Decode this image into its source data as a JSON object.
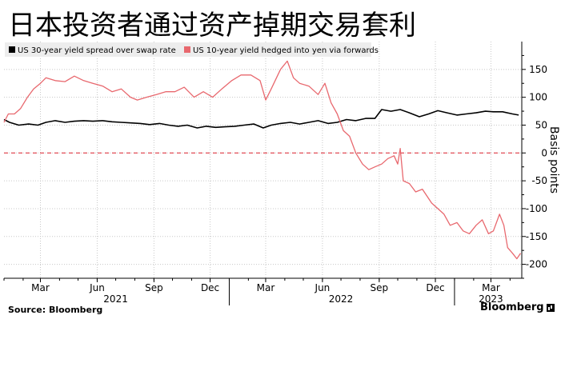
{
  "title": "日本投资者通过资产掉期交易套利",
  "source": "Source: Bloomberg",
  "brand": "Bloomberg",
  "chart_data": {
    "type": "line",
    "ylabel": "Basis points",
    "ylim": [
      -225,
      200
    ],
    "yticks": [
      150,
      100,
      50,
      0,
      -50,
      -100,
      -150,
      -200
    ],
    "x_range": [
      "2021-01-01",
      "2023-04-20"
    ],
    "x_months": [
      {
        "label": "Mar",
        "date": "2021-03-01"
      },
      {
        "label": "Jun",
        "date": "2021-06-01"
      },
      {
        "label": "Sep",
        "date": "2021-09-01"
      },
      {
        "label": "Dec",
        "date": "2021-12-01"
      },
      {
        "label": "Mar",
        "date": "2022-03-01"
      },
      {
        "label": "Jun",
        "date": "2022-06-01"
      },
      {
        "label": "Sep",
        "date": "2022-09-01"
      },
      {
        "label": "Dec",
        "date": "2022-12-01"
      },
      {
        "label": "Mar",
        "date": "2023-03-01"
      }
    ],
    "x_years": [
      {
        "label": "2021",
        "date": "2021-07-01"
      },
      {
        "label": "2022",
        "date": "2022-07-01"
      },
      {
        "label": "2023",
        "date": "2023-03-01"
      }
    ],
    "year_dividers": [
      "2022-01-01",
      "2023-01-01"
    ],
    "zero_line": 0,
    "grid": "horizontal-dotted",
    "legend_position": "top-left",
    "series": [
      {
        "name": "US 30-year yield spread over swap rate",
        "color": "#000000",
        "points": [
          [
            "2021-01-01",
            60
          ],
          [
            "2021-01-10",
            55
          ],
          [
            "2021-01-25",
            50
          ],
          [
            "2021-02-10",
            52
          ],
          [
            "2021-02-25",
            50
          ],
          [
            "2021-03-10",
            55
          ],
          [
            "2021-03-25",
            58
          ],
          [
            "2021-04-10",
            55
          ],
          [
            "2021-04-25",
            57
          ],
          [
            "2021-05-10",
            58
          ],
          [
            "2021-05-25",
            57
          ],
          [
            "2021-06-10",
            58
          ],
          [
            "2021-06-25",
            56
          ],
          [
            "2021-07-10",
            55
          ],
          [
            "2021-07-25",
            54
          ],
          [
            "2021-08-10",
            53
          ],
          [
            "2021-08-25",
            51
          ],
          [
            "2021-09-10",
            53
          ],
          [
            "2021-09-25",
            50
          ],
          [
            "2021-10-10",
            48
          ],
          [
            "2021-10-25",
            50
          ],
          [
            "2021-11-10",
            45
          ],
          [
            "2021-11-25",
            48
          ],
          [
            "2021-12-10",
            46
          ],
          [
            "2021-12-25",
            47
          ],
          [
            "2022-01-10",
            48
          ],
          [
            "2022-01-25",
            50
          ],
          [
            "2022-02-10",
            52
          ],
          [
            "2022-02-25",
            45
          ],
          [
            "2022-03-10",
            50
          ],
          [
            "2022-03-25",
            53
          ],
          [
            "2022-04-10",
            55
          ],
          [
            "2022-04-25",
            52
          ],
          [
            "2022-05-10",
            55
          ],
          [
            "2022-05-25",
            58
          ],
          [
            "2022-06-10",
            53
          ],
          [
            "2022-06-25",
            55
          ],
          [
            "2022-07-10",
            60
          ],
          [
            "2022-07-25",
            58
          ],
          [
            "2022-08-10",
            62
          ],
          [
            "2022-08-25",
            62
          ],
          [
            "2022-09-05",
            78
          ],
          [
            "2022-09-20",
            75
          ],
          [
            "2022-10-05",
            78
          ],
          [
            "2022-10-20",
            72
          ],
          [
            "2022-11-05",
            65
          ],
          [
            "2022-11-20",
            70
          ],
          [
            "2022-12-05",
            76
          ],
          [
            "2022-12-20",
            72
          ],
          [
            "2023-01-05",
            68
          ],
          [
            "2023-01-20",
            70
          ],
          [
            "2023-02-05",
            72
          ],
          [
            "2023-02-20",
            75
          ],
          [
            "2023-03-05",
            74
          ],
          [
            "2023-03-20",
            74
          ],
          [
            "2023-04-05",
            70
          ],
          [
            "2023-04-15",
            68
          ]
        ]
      },
      {
        "name": "US 10-year yield hedged into yen via forwards",
        "color": "#e8686e",
        "points": [
          [
            "2021-01-01",
            55
          ],
          [
            "2021-01-08",
            70
          ],
          [
            "2021-01-18",
            70
          ],
          [
            "2021-01-28",
            80
          ],
          [
            "2021-02-08",
            100
          ],
          [
            "2021-02-18",
            115
          ],
          [
            "2021-03-01",
            125
          ],
          [
            "2021-03-10",
            135
          ],
          [
            "2021-03-25",
            130
          ],
          [
            "2021-04-10",
            128
          ],
          [
            "2021-04-25",
            138
          ],
          [
            "2021-05-10",
            130
          ],
          [
            "2021-05-25",
            125
          ],
          [
            "2021-06-10",
            120
          ],
          [
            "2021-06-25",
            110
          ],
          [
            "2021-07-10",
            115
          ],
          [
            "2021-07-25",
            100
          ],
          [
            "2021-08-05",
            95
          ],
          [
            "2021-08-20",
            100
          ],
          [
            "2021-09-05",
            105
          ],
          [
            "2021-09-20",
            110
          ],
          [
            "2021-10-05",
            110
          ],
          [
            "2021-10-20",
            118
          ],
          [
            "2021-11-05",
            100
          ],
          [
            "2021-11-20",
            110
          ],
          [
            "2021-12-05",
            100
          ],
          [
            "2021-12-20",
            115
          ],
          [
            "2022-01-05",
            130
          ],
          [
            "2022-01-20",
            140
          ],
          [
            "2022-02-05",
            140
          ],
          [
            "2022-02-20",
            130
          ],
          [
            "2022-03-01",
            95
          ],
          [
            "2022-03-10",
            115
          ],
          [
            "2022-03-25",
            150
          ],
          [
            "2022-04-05",
            165
          ],
          [
            "2022-04-15",
            135
          ],
          [
            "2022-04-25",
            125
          ],
          [
            "2022-05-10",
            120
          ],
          [
            "2022-05-25",
            105
          ],
          [
            "2022-06-05",
            125
          ],
          [
            "2022-06-15",
            90
          ],
          [
            "2022-06-25",
            70
          ],
          [
            "2022-07-05",
            40
          ],
          [
            "2022-07-15",
            30
          ],
          [
            "2022-07-25",
            0
          ],
          [
            "2022-08-05",
            -20
          ],
          [
            "2022-08-15",
            -30
          ],
          [
            "2022-08-25",
            -25
          ],
          [
            "2022-09-05",
            -20
          ],
          [
            "2022-09-15",
            -10
          ],
          [
            "2022-09-25",
            -5
          ],
          [
            "2022-10-01",
            -20
          ],
          [
            "2022-10-05",
            8
          ],
          [
            "2022-10-10",
            -50
          ],
          [
            "2022-10-20",
            -55
          ],
          [
            "2022-10-30",
            -70
          ],
          [
            "2022-11-10",
            -65
          ],
          [
            "2022-11-25",
            -90
          ],
          [
            "2022-12-05",
            -100
          ],
          [
            "2022-12-15",
            -110
          ],
          [
            "2022-12-25",
            -130
          ],
          [
            "2023-01-05",
            -125
          ],
          [
            "2023-01-15",
            -140
          ],
          [
            "2023-01-25",
            -145
          ],
          [
            "2023-02-05",
            -130
          ],
          [
            "2023-02-15",
            -120
          ],
          [
            "2023-02-25",
            -145
          ],
          [
            "2023-03-05",
            -140
          ],
          [
            "2023-03-15",
            -110
          ],
          [
            "2023-03-22",
            -130
          ],
          [
            "2023-03-28",
            -170
          ],
          [
            "2023-04-05",
            -180
          ],
          [
            "2023-04-12",
            -190
          ],
          [
            "2023-04-18",
            -180
          ]
        ]
      }
    ]
  }
}
